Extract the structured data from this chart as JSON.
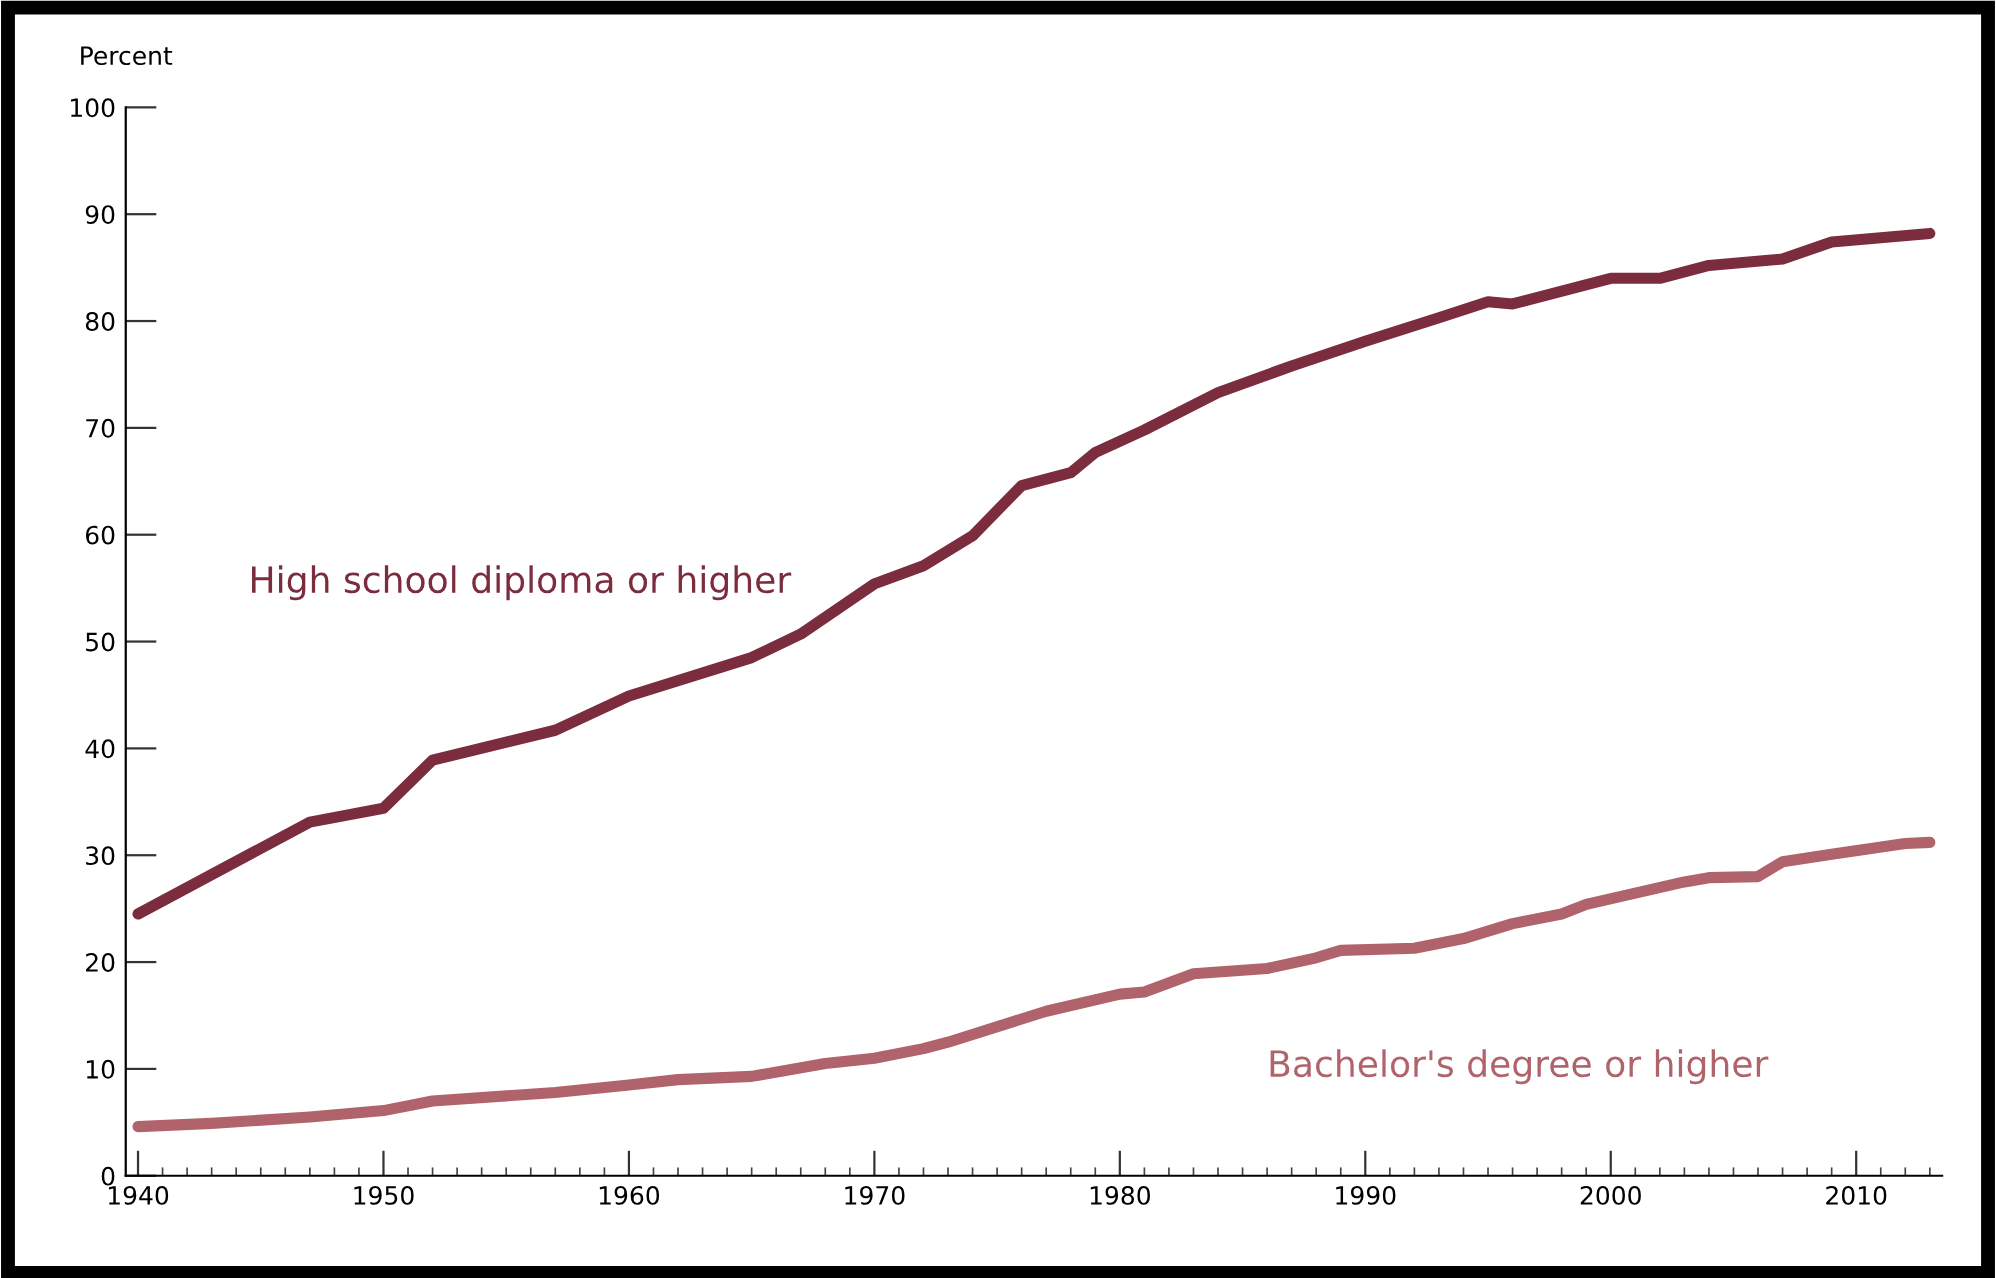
{
  "chart_data": {
    "type": "line",
    "ylabel": "Percent",
    "xlim": [
      1939.5,
      2013.5
    ],
    "ylim": [
      0,
      100
    ],
    "xticks": [
      1940,
      1950,
      1960,
      1970,
      1980,
      1990,
      2000,
      2010
    ],
    "yticks": [
      0,
      10,
      20,
      30,
      40,
      50,
      60,
      70,
      80,
      90,
      100
    ],
    "grid": false,
    "legend": false,
    "marker": "none",
    "line_style": "solid",
    "series": [
      {
        "name": "High school diploma or higher",
        "color": "#7b2d3e",
        "x": [
          1940,
          1947,
          1950,
          1952,
          1957,
          1960,
          1965,
          1967,
          1970,
          1972,
          1974,
          1976,
          1978,
          1979,
          1981,
          1984,
          1987,
          1990,
          1993,
          1995,
          1996,
          2000,
          2002,
          2004,
          2007,
          2009,
          2011,
          2013
        ],
        "values": [
          24.5,
          33.1,
          34.4,
          38.9,
          41.7,
          44.9,
          48.5,
          50.7,
          55.4,
          57.1,
          59.9,
          64.6,
          65.8,
          67.7,
          69.8,
          73.3,
          75.8,
          78.1,
          80.3,
          81.8,
          81.6,
          84.0,
          84.0,
          85.2,
          85.8,
          87.4,
          87.8,
          88.2
        ]
      },
      {
        "name": "Bachelor's degree or higher",
        "color": "#b0636b",
        "x": [
          1940,
          1943,
          1947,
          1950,
          1952,
          1957,
          1960,
          1962,
          1965,
          1968,
          1970,
          1972,
          1973,
          1977,
          1980,
          1981,
          1983,
          1986,
          1988,
          1989,
          1992,
          1994,
          1996,
          1998,
          1999,
          2003,
          2004,
          2006,
          2007,
          2009,
          2012,
          2013
        ],
        "values": [
          4.6,
          4.9,
          5.5,
          6.1,
          7.0,
          7.8,
          8.5,
          9.0,
          9.3,
          10.5,
          11.0,
          11.9,
          12.5,
          15.4,
          17.0,
          17.2,
          18.9,
          19.4,
          20.4,
          21.1,
          21.3,
          22.2,
          23.6,
          24.5,
          25.4,
          27.5,
          27.9,
          28.0,
          29.4,
          30.1,
          31.1,
          31.2
        ]
      }
    ]
  }
}
